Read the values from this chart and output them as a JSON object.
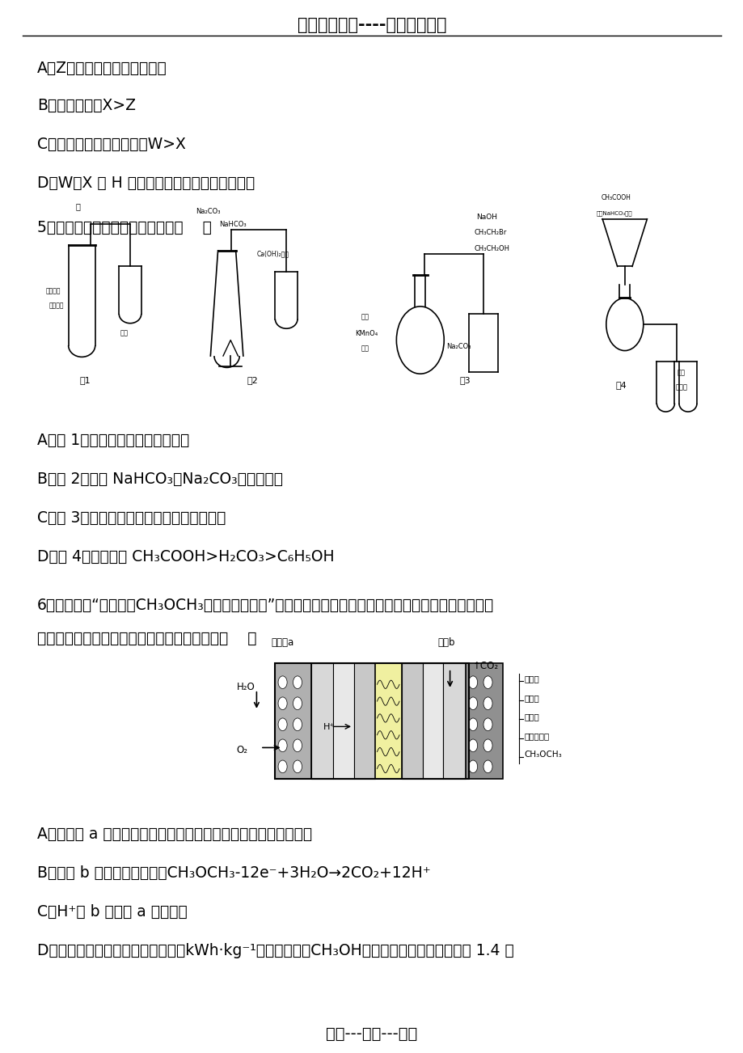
{
  "background_color": "#ffffff",
  "header_text": "精选优质文档----倒情为你奉上",
  "footer_text": "专心---专注---专业",
  "line_A": "A．Z元素的含氧酸一定是强酸",
  "line_B": "B．原子半径：X>Z",
  "line_C": "C．气态氢化物热稳定性：W>X",
  "line_D": "D．W、X 与 H 形成化合物的水溶液可能呈碱性",
  "line_5": "5．下列实验方案设计不合理的是（    ）",
  "line_A2": "A．图 1：验证苯中是否有碳碳双键",
  "line_B2": "B．图 2：验证 NaHCO₃和Na₂CO₃的热稳定性",
  "line_C2": "C．图 3：验证渴乙烷发生消去反应生成烯烃",
  "line_D2": "D．图 4：验证酸性 CH₃COOH>H₂CO₃>C₆H₅OH",
  "line_6a": "6．一种酸性“二甲醚（CH₃OCH₃）直接燃料电池”具有启动快、能量密度高、效率好等优点，其电池原理",
  "line_6b": "如图所示。下列有关该电池的说法不正确的是（    ）",
  "line_A3": "A．多孔碳 a 能增大气固接触面积，提高反应速率，该电极为负极",
  "line_B3": "B．电极 b 上发生的反应为：CH₃OCH₃-12e⁻+3H₂O→2CO₂+12H⁺",
  "line_C3": "C．H⁺由 b 电极向 a 电极迁移",
  "line_D3": "D．二甲醚直接燃料电池能量密度（kWh·kg⁻¹）约为甲醇（CH₃OH）直接燃料电池能量密度的 1.4 倍"
}
